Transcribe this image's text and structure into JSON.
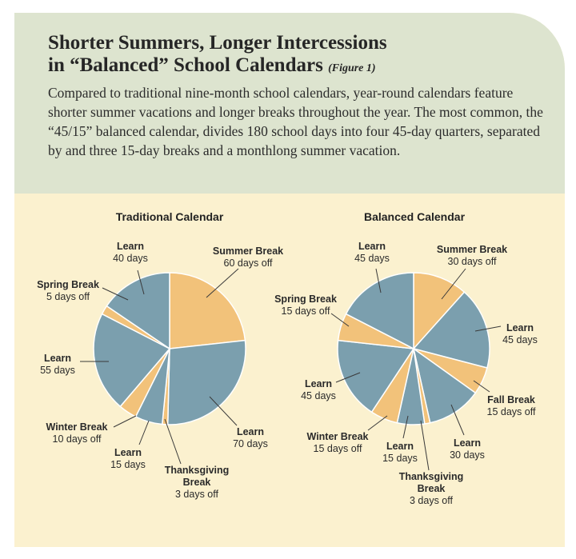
{
  "header": {
    "title_line1": "Shorter Summers, Longer Intercessions",
    "title_line2": "in “Balanced” School Calendars",
    "figure_ref": "(Figure 1)",
    "description": "Compared to traditional nine-month school calendars, year-round calendars feature shorter summer vacations and longer breaks throughout the year. The most common, the “45/15” balanced calendar, divides 180 school days into four 45-day quarters, separated by and three 15-day breaks and a monthlong summer vacation."
  },
  "colors": {
    "learn": "#7b9fae",
    "break": "#f2c27a",
    "header_bg": "#dde4cf",
    "panel_bg": "#fbf1cf"
  },
  "chart_data": [
    {
      "type": "pie",
      "title": "Traditional Calendar",
      "slices": [
        {
          "name": "Summer Break",
          "value": 60,
          "value_label": "60 days off",
          "kind": "break"
        },
        {
          "name": "Learn",
          "value": 70,
          "value_label": "70 days",
          "kind": "learn"
        },
        {
          "name": "Thanksgiving Break",
          "value": 3,
          "value_label": "3 days off",
          "kind": "break"
        },
        {
          "name": "Learn",
          "value": 15,
          "value_label": "15 days",
          "kind": "learn"
        },
        {
          "name": "Winter Break",
          "value": 10,
          "value_label": "10 days off",
          "kind": "break"
        },
        {
          "name": "Learn",
          "value": 55,
          "value_label": "55 days",
          "kind": "learn"
        },
        {
          "name": "Spring Break",
          "value": 5,
          "value_label": "5 days off",
          "kind": "break"
        },
        {
          "name": "Learn",
          "value": 40,
          "value_label": "40 days",
          "kind": "learn"
        }
      ]
    },
    {
      "type": "pie",
      "title": "Balanced Calendar",
      "slices": [
        {
          "name": "Summer Break",
          "value": 30,
          "value_label": "30 days off",
          "kind": "break"
        },
        {
          "name": "Learn",
          "value": 45,
          "value_label": "45 days",
          "kind": "learn"
        },
        {
          "name": "Fall Break",
          "value": 15,
          "value_label": "15 days off",
          "kind": "break"
        },
        {
          "name": "Learn",
          "value": 30,
          "value_label": "30 days",
          "kind": "learn"
        },
        {
          "name": "Thanksgiving Break",
          "value": 3,
          "value_label": "3 days off",
          "kind": "break"
        },
        {
          "name": "Learn",
          "value": 15,
          "value_label": "15 days",
          "kind": "learn"
        },
        {
          "name": "Winter Break",
          "value": 15,
          "value_label": "15 days off",
          "kind": "break"
        },
        {
          "name": "Learn",
          "value": 45,
          "value_label": "45 days",
          "kind": "learn"
        },
        {
          "name": "Spring Break",
          "value": 15,
          "value_label": "15 days off",
          "kind": "break"
        },
        {
          "name": "Learn",
          "value": 45,
          "value_label": "45 days",
          "kind": "learn"
        }
      ]
    }
  ]
}
